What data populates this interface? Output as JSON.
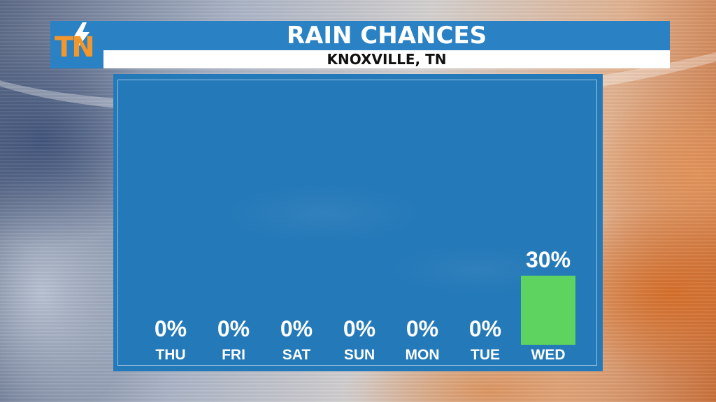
{
  "header": {
    "logo_text": "TN",
    "title": "RAIN CHANCES",
    "subtitle": "KNOXVILLE, TN"
  },
  "colors": {
    "accent_blue": "#2a82c4",
    "panel_blue": "#2479b8",
    "logo_orange": "#f3962b",
    "bar_green": "#5fd35f"
  },
  "icons": {
    "logo_bolt": "lightning-bolt-icon"
  },
  "chart_data": {
    "type": "bar",
    "title": "RAIN CHANCES",
    "subtitle": "KNOXVILLE, TN",
    "categories": [
      "THU",
      "FRI",
      "SAT",
      "SUN",
      "MON",
      "TUE",
      "WED"
    ],
    "values": [
      0,
      0,
      0,
      0,
      0,
      0,
      30
    ],
    "value_labels": [
      "0%",
      "0%",
      "0%",
      "0%",
      "0%",
      "0%",
      "30%"
    ],
    "ylim": [
      0,
      100
    ],
    "grid": false,
    "legend": "none"
  }
}
